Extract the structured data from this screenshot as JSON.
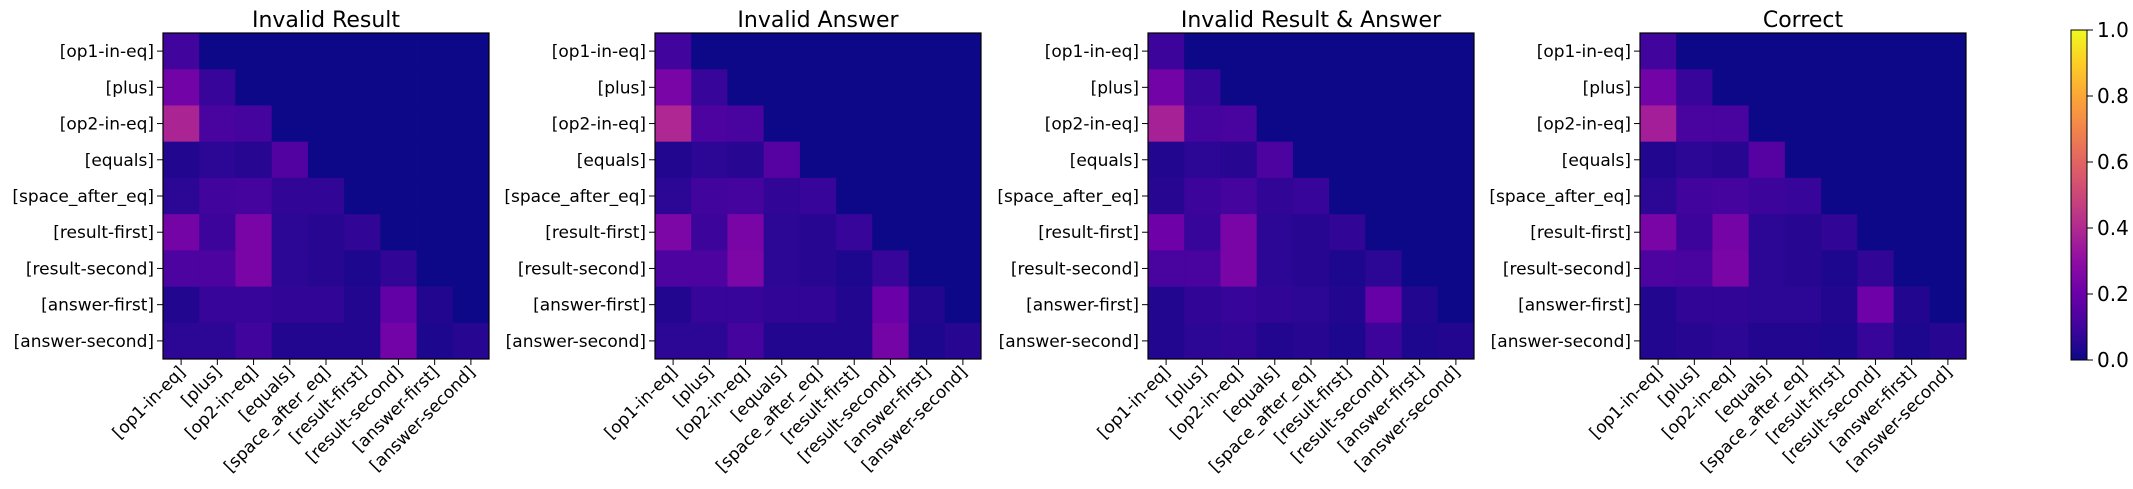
{
  "chart_data": [
    {
      "type": "heatmap",
      "title": "Invalid Result",
      "xlabel": "",
      "ylabel": "",
      "x_ticks": [
        "[op1-in-eq]",
        "[plus]",
        "[op2-in-eq]",
        "[equals]",
        "[space_after_eq]",
        "[result-first]",
        "[result-second]",
        "[answer-first]",
        "[answer-second]"
      ],
      "y_ticks": [
        "[op1-in-eq]",
        "[plus]",
        "[op2-in-eq]",
        "[equals]",
        "[space_after_eq]",
        "[result-first]",
        "[result-second]",
        "[answer-first]",
        "[answer-second]"
      ],
      "values": [
        [
          0.1,
          0.0,
          0.0,
          0.0,
          0.0,
          0.0,
          0.0,
          0.0,
          0.0
        ],
        [
          0.22,
          0.08,
          0.0,
          0.0,
          0.0,
          0.0,
          0.0,
          0.0,
          0.0
        ],
        [
          0.38,
          0.12,
          0.11,
          0.0,
          0.0,
          0.0,
          0.0,
          0.0,
          0.0
        ],
        [
          0.04,
          0.06,
          0.05,
          0.14,
          0.0,
          0.0,
          0.0,
          0.0,
          0.0
        ],
        [
          0.06,
          0.1,
          0.11,
          0.07,
          0.07,
          0.0,
          0.0,
          0.0,
          0.0
        ],
        [
          0.23,
          0.09,
          0.24,
          0.06,
          0.05,
          0.07,
          0.0,
          0.0,
          0.0
        ],
        [
          0.13,
          0.13,
          0.24,
          0.06,
          0.05,
          0.03,
          0.07,
          0.0,
          0.0
        ],
        [
          0.04,
          0.08,
          0.08,
          0.07,
          0.07,
          0.04,
          0.18,
          0.04,
          0.0
        ],
        [
          0.06,
          0.06,
          0.1,
          0.04,
          0.04,
          0.04,
          0.22,
          0.03,
          0.05
        ]
      ]
    },
    {
      "type": "heatmap",
      "title": "Invalid Answer",
      "xlabel": "",
      "ylabel": "",
      "x_ticks": [
        "[op1-in-eq]",
        "[plus]",
        "[op2-in-eq]",
        "[equals]",
        "[space_after_eq]",
        "[result-first]",
        "[result-second]",
        "[answer-first]",
        "[answer-second]"
      ],
      "y_ticks": [
        "[op1-in-eq]",
        "[plus]",
        "[op2-in-eq]",
        "[equals]",
        "[space_after_eq]",
        "[result-first]",
        "[result-second]",
        "[answer-first]",
        "[answer-second]"
      ],
      "values": [
        [
          0.1,
          0.0,
          0.0,
          0.0,
          0.0,
          0.0,
          0.0,
          0.0,
          0.0
        ],
        [
          0.24,
          0.08,
          0.0,
          0.0,
          0.0,
          0.0,
          0.0,
          0.0,
          0.0
        ],
        [
          0.39,
          0.13,
          0.12,
          0.0,
          0.0,
          0.0,
          0.0,
          0.0,
          0.0
        ],
        [
          0.04,
          0.06,
          0.05,
          0.15,
          0.0,
          0.0,
          0.0,
          0.0,
          0.0
        ],
        [
          0.06,
          0.1,
          0.11,
          0.07,
          0.08,
          0.0,
          0.0,
          0.0,
          0.0
        ],
        [
          0.25,
          0.09,
          0.24,
          0.06,
          0.05,
          0.08,
          0.0,
          0.0,
          0.0
        ],
        [
          0.13,
          0.13,
          0.25,
          0.06,
          0.05,
          0.03,
          0.08,
          0.0,
          0.0
        ],
        [
          0.04,
          0.08,
          0.08,
          0.07,
          0.07,
          0.04,
          0.2,
          0.04,
          0.0
        ],
        [
          0.06,
          0.06,
          0.11,
          0.04,
          0.04,
          0.04,
          0.23,
          0.03,
          0.05
        ]
      ]
    },
    {
      "type": "heatmap",
      "title": "Invalid Result & Answer",
      "xlabel": "",
      "ylabel": "",
      "x_ticks": [
        "[op1-in-eq]",
        "[plus]",
        "[op2-in-eq]",
        "[equals]",
        "[space_after_eq]",
        "[result-first]",
        "[result-second]",
        "[answer-first]",
        "[answer-second]"
      ],
      "y_ticks": [
        "[op1-in-eq]",
        "[plus]",
        "[op2-in-eq]",
        "[equals]",
        "[space_after_eq]",
        "[result-first]",
        "[result-second]",
        "[answer-first]",
        "[answer-second]"
      ],
      "values": [
        [
          0.09,
          0.0,
          0.0,
          0.0,
          0.0,
          0.0,
          0.0,
          0.0,
          0.0
        ],
        [
          0.22,
          0.08,
          0.0,
          0.0,
          0.0,
          0.0,
          0.0,
          0.0,
          0.0
        ],
        [
          0.37,
          0.11,
          0.12,
          0.0,
          0.0,
          0.0,
          0.0,
          0.0,
          0.0
        ],
        [
          0.04,
          0.06,
          0.05,
          0.13,
          0.0,
          0.0,
          0.0,
          0.0,
          0.0
        ],
        [
          0.05,
          0.09,
          0.11,
          0.07,
          0.08,
          0.0,
          0.0,
          0.0,
          0.0
        ],
        [
          0.21,
          0.08,
          0.24,
          0.06,
          0.05,
          0.07,
          0.0,
          0.0,
          0.0
        ],
        [
          0.12,
          0.12,
          0.24,
          0.06,
          0.05,
          0.03,
          0.06,
          0.0,
          0.0
        ],
        [
          0.04,
          0.07,
          0.08,
          0.07,
          0.06,
          0.04,
          0.19,
          0.04,
          0.0
        ],
        [
          0.04,
          0.06,
          0.07,
          0.04,
          0.05,
          0.03,
          0.09,
          0.03,
          0.04
        ]
      ]
    },
    {
      "type": "heatmap",
      "title": "Correct",
      "xlabel": "",
      "ylabel": "",
      "x_ticks": [
        "[op1-in-eq]",
        "[plus]",
        "[op2-in-eq]",
        "[equals]",
        "[space_after_eq]",
        "[result-first]",
        "[result-second]",
        "[answer-first]",
        "[answer-second]"
      ],
      "y_ticks": [
        "[op1-in-eq]",
        "[plus]",
        "[op2-in-eq]",
        "[equals]",
        "[space_after_eq]",
        "[result-first]",
        "[result-second]",
        "[answer-first]",
        "[answer-second]"
      ],
      "values": [
        [
          0.1,
          0.0,
          0.0,
          0.0,
          0.0,
          0.0,
          0.0,
          0.0,
          0.0
        ],
        [
          0.22,
          0.08,
          0.0,
          0.0,
          0.0,
          0.0,
          0.0,
          0.0,
          0.0
        ],
        [
          0.36,
          0.12,
          0.12,
          0.0,
          0.0,
          0.0,
          0.0,
          0.0,
          0.0
        ],
        [
          0.04,
          0.06,
          0.05,
          0.15,
          0.0,
          0.0,
          0.0,
          0.0,
          0.0
        ],
        [
          0.06,
          0.1,
          0.11,
          0.09,
          0.08,
          0.0,
          0.0,
          0.0,
          0.0
        ],
        [
          0.24,
          0.09,
          0.23,
          0.06,
          0.05,
          0.07,
          0.0,
          0.0,
          0.0
        ],
        [
          0.13,
          0.12,
          0.24,
          0.06,
          0.05,
          0.03,
          0.07,
          0.0,
          0.0
        ],
        [
          0.04,
          0.07,
          0.07,
          0.06,
          0.06,
          0.04,
          0.21,
          0.04,
          0.0
        ],
        [
          0.04,
          0.05,
          0.06,
          0.04,
          0.04,
          0.03,
          0.08,
          0.03,
          0.05
        ]
      ]
    }
  ],
  "colorbar": {
    "colormap": "plasma",
    "vmin": 0.0,
    "vmax": 1.0,
    "ticks": [
      0.0,
      0.2,
      0.4,
      0.6,
      0.8,
      1.0
    ],
    "tick_labels": [
      "0.0",
      "0.2",
      "0.4",
      "0.6",
      "0.8",
      "1.0"
    ]
  }
}
